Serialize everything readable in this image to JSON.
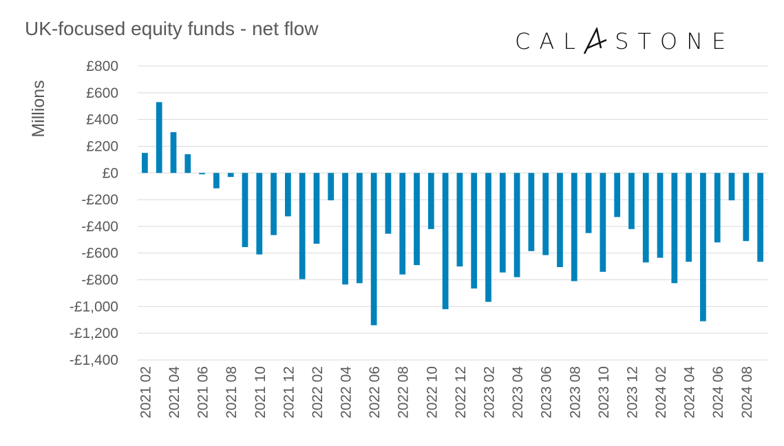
{
  "chart_data": {
    "type": "bar",
    "title": "UK-focused equity funds - net flow",
    "xlabel": "",
    "ylabel": "Millions",
    "ylim": [
      -1400,
      800
    ],
    "yticks": [
      800,
      600,
      400,
      200,
      0,
      -200,
      -400,
      -600,
      -800,
      -1000,
      -1200,
      -1400
    ],
    "ytick_labels": [
      "£800",
      "£600",
      "£400",
      "£200",
      "£0",
      "-£200",
      "-£400",
      "-£600",
      "-£800",
      "-£1,000",
      "-£1,200",
      "-£1,400"
    ],
    "grid": true,
    "bar_color": "#0082BA",
    "categories": [
      "2021 02",
      "2021 03",
      "2021 04",
      "2021 05",
      "2021 06",
      "2021 07",
      "2021 08",
      "2021 09",
      "2021 10",
      "2021 11",
      "2021 12",
      "2022 01",
      "2022 02",
      "2022 03",
      "2022 04",
      "2022 05",
      "2022 06",
      "2022 07",
      "2022 08",
      "2022 09",
      "2022 10",
      "2022 11",
      "2022 12",
      "2023 01",
      "2023 02",
      "2023 03",
      "2023 04",
      "2023 05",
      "2023 06",
      "2023 07",
      "2023 08",
      "2023 09",
      "2023 10",
      "2023 11",
      "2023 12",
      "2024 01",
      "2024 02",
      "2024 03",
      "2024 04",
      "2024 05",
      "2024 06",
      "2024 07",
      "2024 08",
      "2024 09"
    ],
    "xtick_labels": [
      "2021 02",
      "2021 04",
      "2021 06",
      "2021 08",
      "2021 10",
      "2021 12",
      "2022 02",
      "2022 04",
      "2022 06",
      "2022 08",
      "2022 10",
      "2022 12",
      "2023 02",
      "2023 04",
      "2023 06",
      "2023 08",
      "2023 10",
      "2023 12",
      "2024 02",
      "2024 04",
      "2024 06",
      "2024 08"
    ],
    "values": [
      150,
      530,
      305,
      140,
      -10,
      -115,
      -30,
      -555,
      -610,
      -465,
      -325,
      -795,
      -530,
      -205,
      -835,
      -825,
      -1140,
      -455,
      -760,
      -690,
      -420,
      -1020,
      -700,
      -865,
      -965,
      -745,
      -780,
      -585,
      -615,
      -705,
      -810,
      -450,
      -740,
      -330,
      -420,
      -670,
      -635,
      -825,
      -665,
      -1110,
      -520,
      -205,
      -510,
      -665
    ]
  },
  "logo": {
    "text": "CALASTONE",
    "left": "CAL",
    "right": "STONE"
  }
}
